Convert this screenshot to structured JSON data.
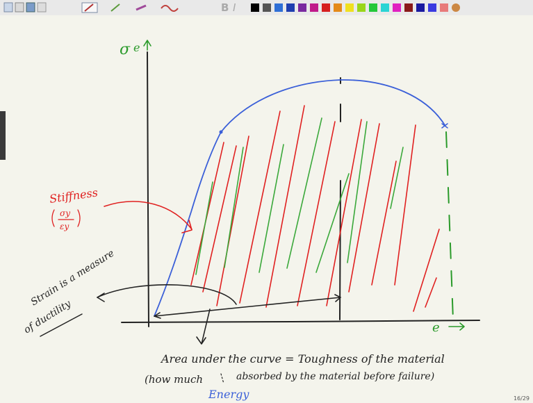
{
  "toolbar": {
    "bold": "B",
    "italic": "I"
  },
  "axes": {
    "y_label": "σ",
    "y_label_2": "e",
    "x_label": "e"
  },
  "stiffness": {
    "label": "Stiffness",
    "numerator": "σy",
    "denominator": "εy"
  },
  "strain_note": {
    "line1": "Strain is a measure",
    "line2": "of ductility"
  },
  "area_note": {
    "line1": "Area under the curve = Toughness of the material",
    "line2_start": "(how much",
    "line2_end": "absorbed by the material before failure)",
    "insert": "Energy"
  },
  "page_counter": "16/29"
}
